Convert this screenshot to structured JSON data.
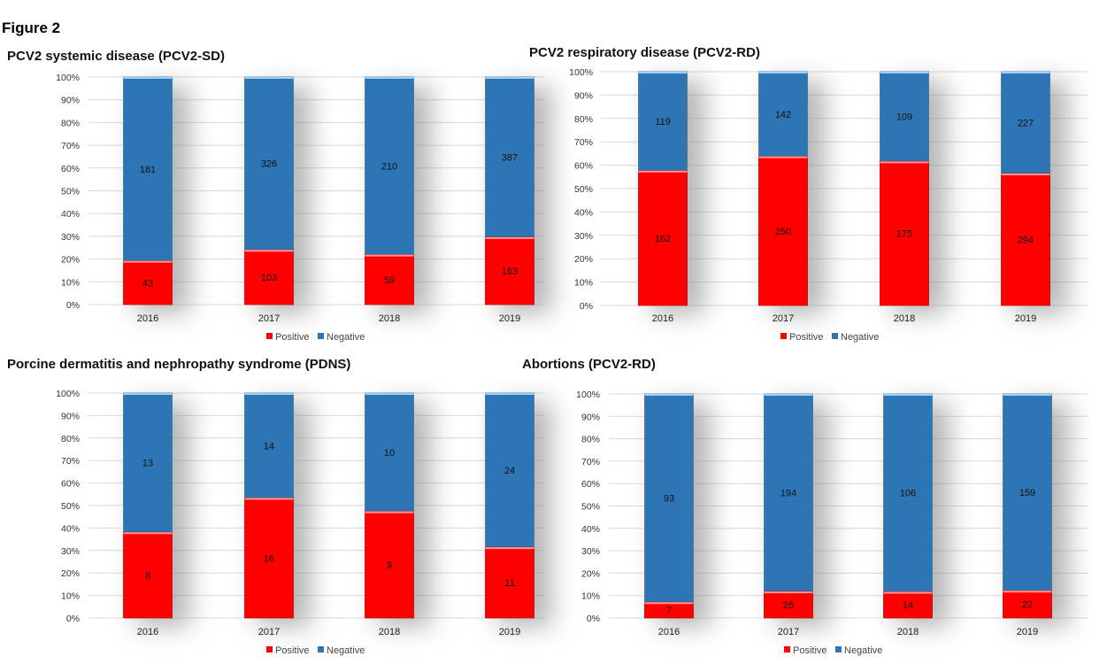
{
  "figure_label": "Figure 2",
  "colors": {
    "positive": "#ff0000",
    "negative": "#2e75b6"
  },
  "chart_data": [
    {
      "type": "bar",
      "stacked": "percent",
      "title": "PCV2 systemic disease (PCV2-SD)",
      "categories": [
        "2016",
        "2017",
        "2018",
        "2019"
      ],
      "series": [
        {
          "name": "Positive",
          "values": [
            43,
            103,
            59,
            163
          ]
        },
        {
          "name": "Negative",
          "values": [
            181,
            326,
            210,
            387
          ]
        }
      ],
      "yticks": [
        "0%",
        "10%",
        "20%",
        "30%",
        "40%",
        "50%",
        "60%",
        "70%",
        "80%",
        "90%",
        "100%"
      ],
      "ylim": [
        0,
        100
      ],
      "grid": true,
      "legend": "bottom"
    },
    {
      "type": "bar",
      "stacked": "percent",
      "title": "PCV2 respiratory disease (PCV2-RD)",
      "categories": [
        "2016",
        "2017",
        "2018",
        "2019"
      ],
      "series": [
        {
          "name": "Positive",
          "values": [
            162,
            250,
            175,
            294
          ]
        },
        {
          "name": "Negative",
          "values": [
            119,
            142,
            109,
            227
          ]
        }
      ],
      "yticks": [
        "0%",
        "10%",
        "20%",
        "30%",
        "40%",
        "50%",
        "60%",
        "70%",
        "80%",
        "90%",
        "100%"
      ],
      "ylim": [
        0,
        100
      ],
      "grid": true,
      "legend": "bottom"
    },
    {
      "type": "bar",
      "stacked": "percent",
      "title": "Porcine dermatitis and nephropathy syndrome (PDNS)",
      "categories": [
        "2016",
        "2017",
        "2018",
        "2019"
      ],
      "series": [
        {
          "name": "Positive",
          "values": [
            8,
            16,
            9,
            11
          ]
        },
        {
          "name": "Negative",
          "values": [
            13,
            14,
            10,
            24
          ]
        }
      ],
      "yticks": [
        "0%",
        "10%",
        "20%",
        "30%",
        "40%",
        "50%",
        "60%",
        "70%",
        "80%",
        "90%",
        "100%"
      ],
      "ylim": [
        0,
        100
      ],
      "grid": true,
      "legend": "bottom"
    },
    {
      "type": "bar",
      "stacked": "percent",
      "title": "Abortions  (PCV2-RD)",
      "categories": [
        "2016",
        "2017",
        "2018",
        "2019"
      ],
      "series": [
        {
          "name": "Positive",
          "values": [
            7,
            26,
            14,
            22
          ]
        },
        {
          "name": "Negative",
          "values": [
            93,
            194,
            106,
            159
          ]
        }
      ],
      "yticks": [
        "0%",
        "10%",
        "20%",
        "30%",
        "40%",
        "50%",
        "60%",
        "70%",
        "80%",
        "90%",
        "100%"
      ],
      "ylim": [
        0,
        100
      ],
      "grid": true,
      "legend": "bottom"
    }
  ]
}
